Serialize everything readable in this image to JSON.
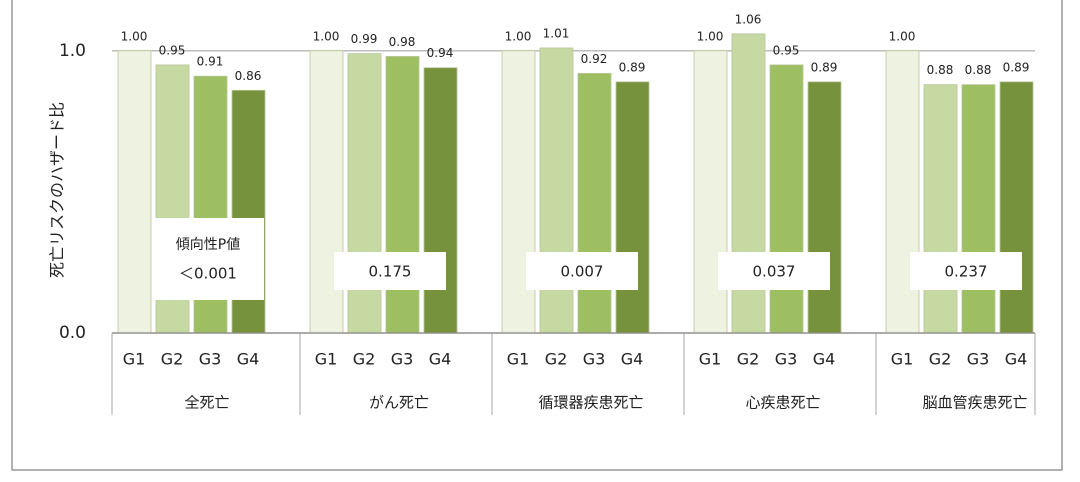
{
  "chart_data": {
    "type": "bar",
    "y_label": "死亡リスクのハザード比",
    "categories": [
      "全死亡",
      "がん死亡",
      "循環器疾患死亡",
      "心疾患死亡",
      "脳血管疾患死亡"
    ],
    "series": [
      {
        "name": "G1",
        "color": "#eef2e0",
        "values": [
          1.0,
          1.0,
          1.0,
          1.0,
          1.0
        ],
        "value_labels": [
          "1.00",
          "1.00",
          "1.00",
          "1.00",
          "1.00"
        ]
      },
      {
        "name": "G2",
        "color": "#c6d9a2",
        "values": [
          0.95,
          0.99,
          1.01,
          1.06,
          0.88
        ],
        "value_labels": [
          "0.95",
          "0.99",
          "1.01",
          "1.06",
          "0.88"
        ]
      },
      {
        "name": "G3",
        "color": "#9dbf62",
        "values": [
          0.91,
          0.98,
          0.92,
          0.95,
          0.88
        ],
        "value_labels": [
          "0.91",
          "0.98",
          "0.92",
          "0.95",
          "0.88"
        ]
      },
      {
        "name": "G4",
        "color": "#76923c",
        "values": [
          0.86,
          0.94,
          0.89,
          0.89,
          0.89
        ],
        "value_labels": [
          "0.86",
          "0.94",
          "0.89",
          "0.89",
          "0.89"
        ]
      }
    ],
    "p_value_title": "傾向性P値",
    "p_values": [
      "＜0.001",
      "0.175",
      "0.007",
      "0.037",
      "0.237"
    ],
    "ylim": [
      0,
      1.18
    ],
    "yticks": [
      {
        "value": 0,
        "label": "0.0"
      },
      {
        "value": 1,
        "label": "1.0"
      }
    ],
    "grid": true
  }
}
